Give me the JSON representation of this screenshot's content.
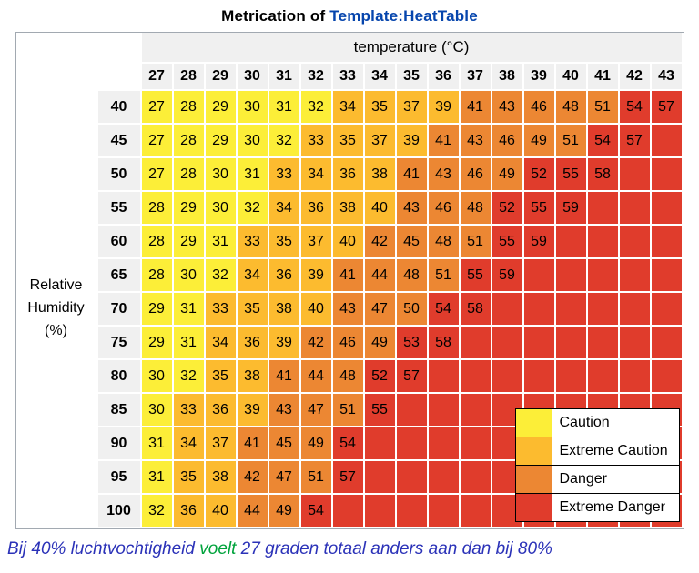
{
  "page": {
    "title_prefix": "Metrication of ",
    "title_link": "Template:HeatTable",
    "caption": {
      "part1": "Bij 40% luchtvochtigheid ",
      "highlight": "voelt",
      "part2": " 27 graden totaal anders aan dan bij 80%"
    }
  },
  "chart_data": {
    "type": "heatmap",
    "title": "Metrication of Template:HeatTable",
    "x_label": "temperature (°C)",
    "y_label": "Relative Humidity (%)",
    "temperatures": [
      27,
      28,
      29,
      30,
      31,
      32,
      33,
      34,
      35,
      36,
      37,
      38,
      39,
      40,
      41,
      42,
      43
    ],
    "humidities": [
      40,
      45,
      50,
      55,
      60,
      65,
      70,
      75,
      80,
      85,
      90,
      95,
      100
    ],
    "rows": [
      [
        27,
        28,
        29,
        30,
        31,
        32,
        34,
        35,
        37,
        39,
        41,
        43,
        46,
        48,
        51,
        54,
        57
      ],
      [
        27,
        28,
        29,
        30,
        32,
        33,
        35,
        37,
        39,
        41,
        43,
        46,
        49,
        51,
        54,
        57
      ],
      [
        27,
        28,
        30,
        31,
        33,
        34,
        36,
        38,
        41,
        43,
        46,
        49,
        52,
        55,
        58
      ],
      [
        28,
        29,
        30,
        32,
        34,
        36,
        38,
        40,
        43,
        46,
        48,
        52,
        55,
        59
      ],
      [
        28,
        29,
        31,
        33,
        35,
        37,
        40,
        42,
        45,
        48,
        51,
        55,
        59
      ],
      [
        28,
        30,
        32,
        34,
        36,
        39,
        41,
        44,
        48,
        51,
        55,
        59
      ],
      [
        29,
        31,
        33,
        35,
        38,
        40,
        43,
        47,
        50,
        54,
        58
      ],
      [
        29,
        31,
        34,
        36,
        39,
        42,
        46,
        49,
        53,
        58
      ],
      [
        30,
        32,
        35,
        38,
        41,
        44,
        48,
        52,
        57
      ],
      [
        30,
        33,
        36,
        39,
        43,
        47,
        51,
        55
      ],
      [
        31,
        34,
        37,
        41,
        45,
        49,
        54
      ],
      [
        31,
        35,
        38,
        42,
        47,
        51,
        57
      ],
      [
        32,
        36,
        40,
        44,
        49,
        54
      ]
    ],
    "thresholds": {
      "caution_max": 32,
      "extreme_caution_max": 40,
      "danger_max": 51
    },
    "colors": {
      "caution": "#fcee38",
      "extreme_caution": "#fcbb2f",
      "danger": "#ec8733",
      "extreme_danger": "#e03c2c"
    },
    "legend": [
      {
        "key": "caution",
        "label": "Caution"
      },
      {
        "key": "extreme_caution",
        "label": "Extreme Caution"
      },
      {
        "key": "danger",
        "label": "Danger"
      },
      {
        "key": "extreme_danger",
        "label": "Extreme Danger"
      }
    ],
    "legend_position": "bottom-right-overlay",
    "grid": true
  }
}
